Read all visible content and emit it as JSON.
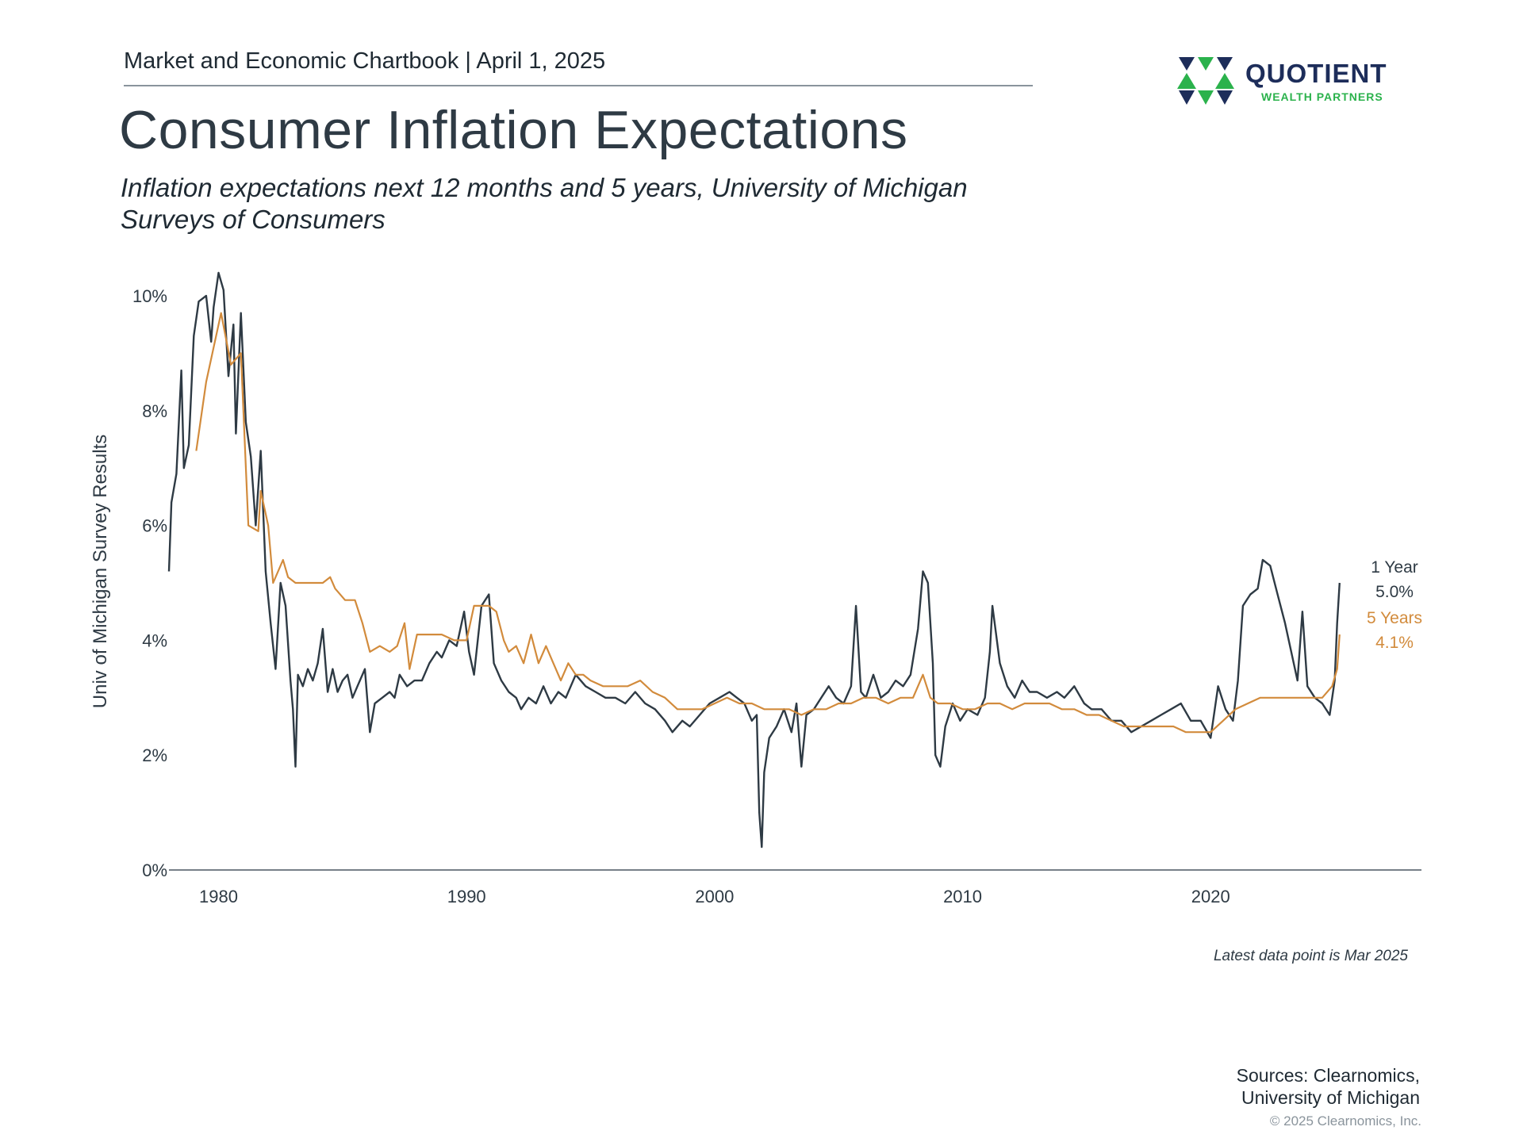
{
  "header": {
    "chartbook": "Market and Economic Chartbook | April 1, 2025",
    "title": "Consumer Inflation Expectations",
    "subtitle": "Inflation expectations next 12 months and 5 years, University of Michigan Surveys of Consumers"
  },
  "logo": {
    "name": "QUOTIENT",
    "sub": "WEALTH PARTNERS",
    "navy": "#1d2d5a",
    "green": "#2bb24c"
  },
  "footer": {
    "latest": "Latest data point is Mar 2025",
    "sources_line1": "Sources: Clearnomics,",
    "sources_line2": "University of Michigan",
    "copyright": "© 2025 Clearnomics, Inc."
  },
  "chart_data": {
    "type": "line",
    "ylabel": "Univ of Michigan Survey Results",
    "xlabel": "",
    "xlim": [
      1978.0,
      2028.5
    ],
    "ylim": [
      0,
      10.4
    ],
    "x_ticks": [
      1980,
      1990,
      2000,
      2010,
      2020
    ],
    "x_tick_labels": [
      "1980",
      "1990",
      "2000",
      "2010",
      "2020"
    ],
    "y_ticks": [
      0,
      2,
      4,
      6,
      8,
      10
    ],
    "y_tick_labels": [
      "0%",
      "2%",
      "4%",
      "6%",
      "8%",
      "10%"
    ],
    "grid": false,
    "legend": "right-end labels",
    "series": [
      {
        "name": "1 Year",
        "end_label": "5.0%",
        "color": "#2e3a44",
        "points": [
          [
            1978.0,
            5.2
          ],
          [
            1978.1,
            6.4
          ],
          [
            1978.3,
            6.9
          ],
          [
            1978.5,
            8.7
          ],
          [
            1978.6,
            7.0
          ],
          [
            1978.8,
            7.4
          ],
          [
            1979.0,
            9.3
          ],
          [
            1979.2,
            9.9
          ],
          [
            1979.5,
            10.0
          ],
          [
            1979.7,
            9.2
          ],
          [
            1979.8,
            9.8
          ],
          [
            1980.0,
            10.4
          ],
          [
            1980.2,
            10.1
          ],
          [
            1980.4,
            8.6
          ],
          [
            1980.6,
            9.5
          ],
          [
            1980.7,
            7.6
          ],
          [
            1980.9,
            9.7
          ],
          [
            1981.1,
            7.8
          ],
          [
            1981.3,
            7.2
          ],
          [
            1981.5,
            6.0
          ],
          [
            1981.7,
            7.3
          ],
          [
            1981.9,
            5.2
          ],
          [
            1982.1,
            4.3
          ],
          [
            1982.3,
            3.5
          ],
          [
            1982.5,
            5.0
          ],
          [
            1982.7,
            4.6
          ],
          [
            1982.9,
            3.3
          ],
          [
            1983.0,
            2.8
          ],
          [
            1983.1,
            1.8
          ],
          [
            1983.2,
            3.4
          ],
          [
            1983.4,
            3.2
          ],
          [
            1983.6,
            3.5
          ],
          [
            1983.8,
            3.3
          ],
          [
            1984.0,
            3.6
          ],
          [
            1984.2,
            4.2
          ],
          [
            1984.4,
            3.1
          ],
          [
            1984.6,
            3.5
          ],
          [
            1984.8,
            3.1
          ],
          [
            1985.0,
            3.3
          ],
          [
            1985.2,
            3.4
          ],
          [
            1985.4,
            3.0
          ],
          [
            1985.6,
            3.2
          ],
          [
            1985.9,
            3.5
          ],
          [
            1986.1,
            2.4
          ],
          [
            1986.3,
            2.9
          ],
          [
            1986.6,
            3.0
          ],
          [
            1986.9,
            3.1
          ],
          [
            1987.1,
            3.0
          ],
          [
            1987.3,
            3.4
          ],
          [
            1987.6,
            3.2
          ],
          [
            1987.9,
            3.3
          ],
          [
            1988.2,
            3.3
          ],
          [
            1988.5,
            3.6
          ],
          [
            1988.8,
            3.8
          ],
          [
            1989.0,
            3.7
          ],
          [
            1989.3,
            4.0
          ],
          [
            1989.6,
            3.9
          ],
          [
            1989.9,
            4.5
          ],
          [
            1990.1,
            3.8
          ],
          [
            1990.3,
            3.4
          ],
          [
            1990.6,
            4.6
          ],
          [
            1990.9,
            4.8
          ],
          [
            1991.1,
            3.6
          ],
          [
            1991.4,
            3.3
          ],
          [
            1991.7,
            3.1
          ],
          [
            1992.0,
            3.0
          ],
          [
            1992.2,
            2.8
          ],
          [
            1992.5,
            3.0
          ],
          [
            1992.8,
            2.9
          ],
          [
            1993.1,
            3.2
          ],
          [
            1993.4,
            2.9
          ],
          [
            1993.7,
            3.1
          ],
          [
            1994.0,
            3.0
          ],
          [
            1994.4,
            3.4
          ],
          [
            1994.8,
            3.2
          ],
          [
            1995.2,
            3.1
          ],
          [
            1995.6,
            3.0
          ],
          [
            1996.0,
            3.0
          ],
          [
            1996.4,
            2.9
          ],
          [
            1996.8,
            3.1
          ],
          [
            1997.2,
            2.9
          ],
          [
            1997.6,
            2.8
          ],
          [
            1998.0,
            2.6
          ],
          [
            1998.3,
            2.4
          ],
          [
            1998.7,
            2.6
          ],
          [
            1999.0,
            2.5
          ],
          [
            1999.4,
            2.7
          ],
          [
            1999.8,
            2.9
          ],
          [
            2000.2,
            3.0
          ],
          [
            2000.6,
            3.1
          ],
          [
            2000.9,
            3.0
          ],
          [
            2001.2,
            2.9
          ],
          [
            2001.5,
            2.6
          ],
          [
            2001.7,
            2.7
          ],
          [
            2001.8,
            1.0
          ],
          [
            2001.9,
            0.4
          ],
          [
            2002.0,
            1.7
          ],
          [
            2002.2,
            2.3
          ],
          [
            2002.5,
            2.5
          ],
          [
            2002.8,
            2.8
          ],
          [
            2003.1,
            2.4
          ],
          [
            2003.3,
            2.9
          ],
          [
            2003.5,
            1.8
          ],
          [
            2003.7,
            2.7
          ],
          [
            2004.0,
            2.8
          ],
          [
            2004.3,
            3.0
          ],
          [
            2004.6,
            3.2
          ],
          [
            2004.9,
            3.0
          ],
          [
            2005.2,
            2.9
          ],
          [
            2005.5,
            3.2
          ],
          [
            2005.7,
            4.6
          ],
          [
            2005.9,
            3.1
          ],
          [
            2006.1,
            3.0
          ],
          [
            2006.4,
            3.4
          ],
          [
            2006.7,
            3.0
          ],
          [
            2007.0,
            3.1
          ],
          [
            2007.3,
            3.3
          ],
          [
            2007.6,
            3.2
          ],
          [
            2007.9,
            3.4
          ],
          [
            2008.2,
            4.2
          ],
          [
            2008.4,
            5.2
          ],
          [
            2008.6,
            5.0
          ],
          [
            2008.8,
            3.6
          ],
          [
            2008.9,
            2.0
          ],
          [
            2009.1,
            1.8
          ],
          [
            2009.3,
            2.5
          ],
          [
            2009.6,
            2.9
          ],
          [
            2009.9,
            2.6
          ],
          [
            2010.2,
            2.8
          ],
          [
            2010.6,
            2.7
          ],
          [
            2010.9,
            3.0
          ],
          [
            2011.1,
            3.8
          ],
          [
            2011.2,
            4.6
          ],
          [
            2011.5,
            3.6
          ],
          [
            2011.8,
            3.2
          ],
          [
            2012.1,
            3.0
          ],
          [
            2012.4,
            3.3
          ],
          [
            2012.7,
            3.1
          ],
          [
            2013.0,
            3.1
          ],
          [
            2013.4,
            3.0
          ],
          [
            2013.8,
            3.1
          ],
          [
            2014.1,
            3.0
          ],
          [
            2014.5,
            3.2
          ],
          [
            2014.9,
            2.9
          ],
          [
            2015.2,
            2.8
          ],
          [
            2015.6,
            2.8
          ],
          [
            2016.0,
            2.6
          ],
          [
            2016.4,
            2.6
          ],
          [
            2016.8,
            2.4
          ],
          [
            2017.2,
            2.5
          ],
          [
            2017.6,
            2.6
          ],
          [
            2018.0,
            2.7
          ],
          [
            2018.4,
            2.8
          ],
          [
            2018.8,
            2.9
          ],
          [
            2019.2,
            2.6
          ],
          [
            2019.6,
            2.6
          ],
          [
            2020.0,
            2.3
          ],
          [
            2020.3,
            3.2
          ],
          [
            2020.6,
            2.8
          ],
          [
            2020.9,
            2.6
          ],
          [
            2021.1,
            3.3
          ],
          [
            2021.3,
            4.6
          ],
          [
            2021.6,
            4.8
          ],
          [
            2021.9,
            4.9
          ],
          [
            2022.1,
            5.4
          ],
          [
            2022.4,
            5.3
          ],
          [
            2022.7,
            4.8
          ],
          [
            2023.0,
            4.3
          ],
          [
            2023.3,
            3.7
          ],
          [
            2023.5,
            3.3
          ],
          [
            2023.7,
            4.5
          ],
          [
            2023.9,
            3.2
          ],
          [
            2024.2,
            3.0
          ],
          [
            2024.5,
            2.9
          ],
          [
            2024.8,
            2.7
          ],
          [
            2025.0,
            3.3
          ],
          [
            2025.1,
            4.3
          ],
          [
            2025.2,
            5.0
          ]
        ]
      },
      {
        "name": "5 Years",
        "end_label": "4.1%",
        "color": "#d28b3c",
        "points": [
          [
            1979.1,
            7.3
          ],
          [
            1979.5,
            8.5
          ],
          [
            1980.1,
            9.7
          ],
          [
            1980.5,
            8.8
          ],
          [
            1980.9,
            9.0
          ],
          [
            1981.2,
            6.0
          ],
          [
            1981.6,
            5.9
          ],
          [
            1981.7,
            6.6
          ],
          [
            1982.0,
            6.0
          ],
          [
            1982.2,
            5.0
          ],
          [
            1982.6,
            5.4
          ],
          [
            1982.8,
            5.1
          ],
          [
            1983.1,
            5.0
          ],
          [
            1983.5,
            5.0
          ],
          [
            1983.8,
            5.0
          ],
          [
            1984.2,
            5.0
          ],
          [
            1984.5,
            5.1
          ],
          [
            1984.7,
            4.9
          ],
          [
            1985.1,
            4.7
          ],
          [
            1985.5,
            4.7
          ],
          [
            1985.8,
            4.3
          ],
          [
            1986.1,
            3.8
          ],
          [
            1986.5,
            3.9
          ],
          [
            1986.9,
            3.8
          ],
          [
            1987.2,
            3.9
          ],
          [
            1987.5,
            4.3
          ],
          [
            1987.7,
            3.5
          ],
          [
            1988.0,
            4.1
          ],
          [
            1988.5,
            4.1
          ],
          [
            1989.0,
            4.1
          ],
          [
            1989.5,
            4.0
          ],
          [
            1990.0,
            4.0
          ],
          [
            1990.3,
            4.6
          ],
          [
            1990.6,
            4.6
          ],
          [
            1990.9,
            4.6
          ],
          [
            1991.2,
            4.5
          ],
          [
            1991.5,
            4.0
          ],
          [
            1991.7,
            3.8
          ],
          [
            1992.0,
            3.9
          ],
          [
            1992.3,
            3.6
          ],
          [
            1992.6,
            4.1
          ],
          [
            1992.9,
            3.6
          ],
          [
            1993.2,
            3.9
          ],
          [
            1993.5,
            3.6
          ],
          [
            1993.8,
            3.3
          ],
          [
            1994.1,
            3.6
          ],
          [
            1994.4,
            3.4
          ],
          [
            1994.7,
            3.4
          ],
          [
            1995.0,
            3.3
          ],
          [
            1995.5,
            3.2
          ],
          [
            1996.0,
            3.2
          ],
          [
            1996.5,
            3.2
          ],
          [
            1997.0,
            3.3
          ],
          [
            1997.5,
            3.1
          ],
          [
            1998.0,
            3.0
          ],
          [
            1998.5,
            2.8
          ],
          [
            1999.0,
            2.8
          ],
          [
            1999.5,
            2.8
          ],
          [
            2000.0,
            2.9
          ],
          [
            2000.5,
            3.0
          ],
          [
            2001.0,
            2.9
          ],
          [
            2001.5,
            2.9
          ],
          [
            2002.0,
            2.8
          ],
          [
            2002.5,
            2.8
          ],
          [
            2003.0,
            2.8
          ],
          [
            2003.5,
            2.7
          ],
          [
            2004.0,
            2.8
          ],
          [
            2004.5,
            2.8
          ],
          [
            2005.0,
            2.9
          ],
          [
            2005.5,
            2.9
          ],
          [
            2006.0,
            3.0
          ],
          [
            2006.5,
            3.0
          ],
          [
            2007.0,
            2.9
          ],
          [
            2007.5,
            3.0
          ],
          [
            2008.0,
            3.0
          ],
          [
            2008.4,
            3.4
          ],
          [
            2008.7,
            3.0
          ],
          [
            2009.0,
            2.9
          ],
          [
            2009.5,
            2.9
          ],
          [
            2010.0,
            2.8
          ],
          [
            2010.5,
            2.8
          ],
          [
            2011.0,
            2.9
          ],
          [
            2011.5,
            2.9
          ],
          [
            2012.0,
            2.8
          ],
          [
            2012.5,
            2.9
          ],
          [
            2013.0,
            2.9
          ],
          [
            2013.5,
            2.9
          ],
          [
            2014.0,
            2.8
          ],
          [
            2014.5,
            2.8
          ],
          [
            2015.0,
            2.7
          ],
          [
            2015.5,
            2.7
          ],
          [
            2016.0,
            2.6
          ],
          [
            2016.5,
            2.5
          ],
          [
            2017.0,
            2.5
          ],
          [
            2017.5,
            2.5
          ],
          [
            2018.0,
            2.5
          ],
          [
            2018.5,
            2.5
          ],
          [
            2019.0,
            2.4
          ],
          [
            2019.5,
            2.4
          ],
          [
            2020.0,
            2.4
          ],
          [
            2020.5,
            2.6
          ],
          [
            2021.0,
            2.8
          ],
          [
            2021.5,
            2.9
          ],
          [
            2022.0,
            3.0
          ],
          [
            2022.5,
            3.0
          ],
          [
            2023.0,
            3.0
          ],
          [
            2023.5,
            3.0
          ],
          [
            2024.0,
            3.0
          ],
          [
            2024.5,
            3.0
          ],
          [
            2024.9,
            3.2
          ],
          [
            2025.1,
            3.5
          ],
          [
            2025.2,
            4.1
          ]
        ]
      }
    ]
  }
}
